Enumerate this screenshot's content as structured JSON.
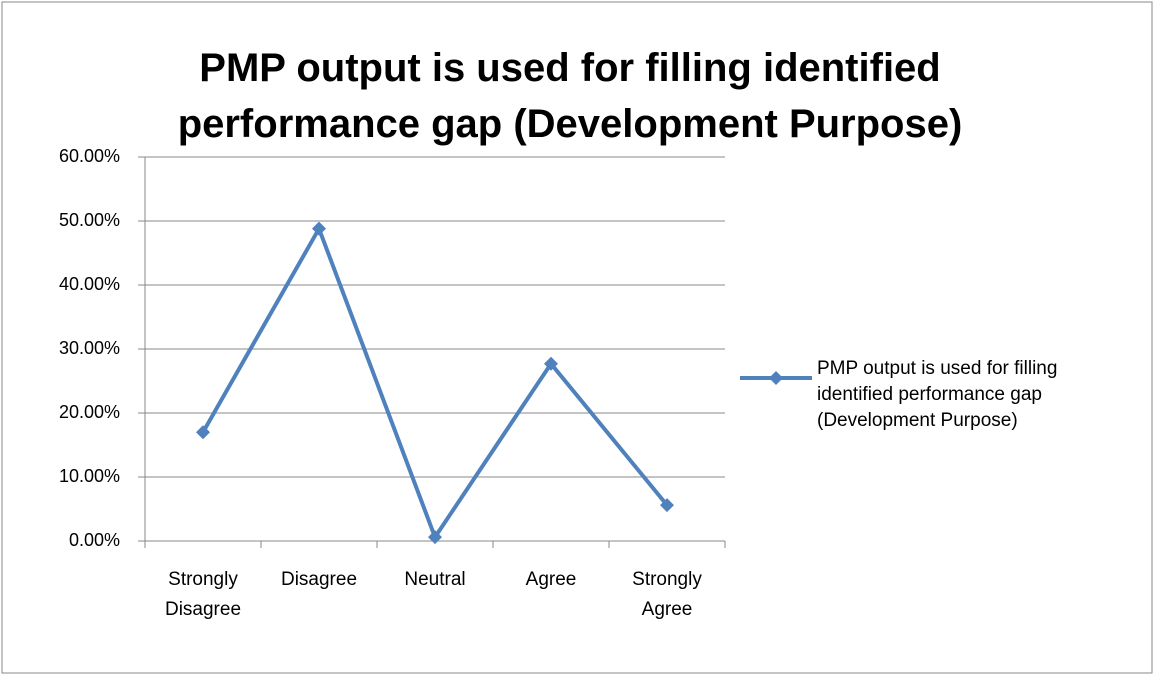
{
  "chart_data": {
    "type": "line",
    "title": "PMP output is used for filling identified performance gap (Development Purpose)",
    "categories": [
      "Strongly Disagree",
      "Disagree",
      "Neutral",
      "Agree",
      "Strongly Agree"
    ],
    "series": [
      {
        "name": "PMP output is used for filling identified performance gap (Development Purpose)",
        "color": "#4f81bd",
        "values": [
          17.0,
          48.8,
          0.6,
          27.7,
          5.6
        ]
      }
    ],
    "ylim": [
      0,
      60
    ],
    "yticks": [
      {
        "value": 0,
        "label": "0.00%"
      },
      {
        "value": 10,
        "label": "10.00%"
      },
      {
        "value": 20,
        "label": "20.00%"
      },
      {
        "value": 30,
        "label": "30.00%"
      },
      {
        "value": 40,
        "label": "40.00%"
      },
      {
        "value": 50,
        "label": "50.00%"
      },
      {
        "value": 60,
        "label": "60.00%"
      }
    ],
    "grid": true,
    "legend": "right"
  }
}
